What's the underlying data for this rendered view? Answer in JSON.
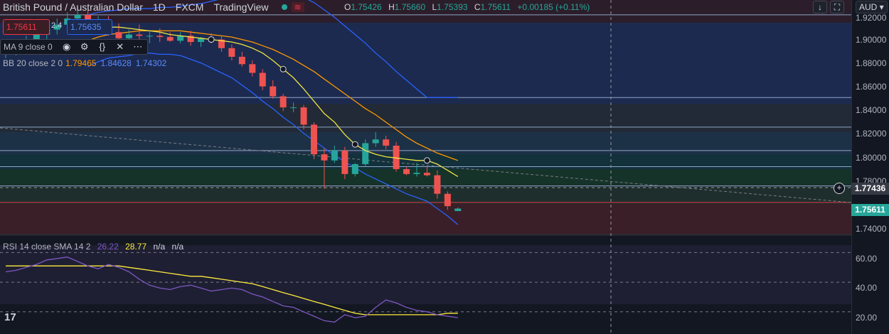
{
  "header": {
    "symbol_title": "British Pound / Australian Dollar",
    "interval": "1D",
    "exchange": "FXCM",
    "source": "TradingView",
    "market_status_icon": "market-closed-icon"
  },
  "ohlc": {
    "o_label": "O",
    "o": "1.75426",
    "h_label": "H",
    "h": "1.75660",
    "l_label": "L",
    "l": "1.75393",
    "c_label": "C",
    "c": "1.75611",
    "change": "+0.00185 (+0.11%)"
  },
  "trade": {
    "sell": "1.75611",
    "spread": "2.4",
    "buy": "1.75635"
  },
  "indicators": {
    "ma_label": "MA 9 close 0",
    "bb_label": "BB 20 close 2 0",
    "bb_basis": "1.79465",
    "bb_upper": "1.84628",
    "bb_lower": "1.74302",
    "rsi_label": "RSI 14 close SMA 14 2",
    "rsi_value": "26.22",
    "rsi_sma": "28.77",
    "rsi_na1": "n/a",
    "rsi_na2": "n/a"
  },
  "price_axis": {
    "currency": "AUD",
    "ticks": [
      "1.92000",
      "1.90000",
      "1.88000",
      "1.86000",
      "1.84000",
      "1.82000",
      "1.80000",
      "1.78000",
      "1.74000"
    ],
    "crosshair_price": "1.77436",
    "last_price": "1.75611",
    "rsi_ticks": [
      "60.00",
      "40.00",
      "20.00"
    ]
  },
  "colors": {
    "up": "#26a69a",
    "down": "#ef5350",
    "ma": "#f0e442",
    "bb_basis": "#ff9800",
    "bb_band": "#2962ff",
    "rsi": "#7e57c2",
    "rsi_sma": "#ffeb3b"
  },
  "chart_data": [
    {
      "type": "candlestick",
      "title": "British Pound / Australian Dollar · 1D · FXCM",
      "y_range": [
        1.735,
        1.925
      ],
      "candles": [
        {
          "o": 1.882,
          "h": 1.889,
          "l": 1.878,
          "c": 1.884
        },
        {
          "o": 1.884,
          "h": 1.892,
          "l": 1.88,
          "c": 1.888
        },
        {
          "o": 1.888,
          "h": 1.896,
          "l": 1.885,
          "c": 1.893
        },
        {
          "o": 1.893,
          "h": 1.9,
          "l": 1.889,
          "c": 1.897
        },
        {
          "o": 1.897,
          "h": 1.905,
          "l": 1.893,
          "c": 1.901
        },
        {
          "o": 1.901,
          "h": 1.91,
          "l": 1.897,
          "c": 1.905
        },
        {
          "o": 1.905,
          "h": 1.915,
          "l": 1.9,
          "c": 1.91
        },
        {
          "o": 1.91,
          "h": 1.918,
          "l": 1.905,
          "c": 1.913
        },
        {
          "o": 1.913,
          "h": 1.917,
          "l": 1.9,
          "c": 1.904
        },
        {
          "o": 1.904,
          "h": 1.912,
          "l": 1.898,
          "c": 1.908
        },
        {
          "o": 1.908,
          "h": 1.912,
          "l": 1.896,
          "c": 1.899
        },
        {
          "o": 1.899,
          "h": 1.906,
          "l": 1.89,
          "c": 1.894
        },
        {
          "o": 1.894,
          "h": 1.901,
          "l": 1.886,
          "c": 1.897
        },
        {
          "o": 1.897,
          "h": 1.905,
          "l": 1.89,
          "c": 1.896
        },
        {
          "o": 1.896,
          "h": 1.9,
          "l": 1.89,
          "c": 1.896
        },
        {
          "o": 1.896,
          "h": 1.902,
          "l": 1.891,
          "c": 1.895
        },
        {
          "o": 1.895,
          "h": 1.899,
          "l": 1.891,
          "c": 1.892
        },
        {
          "o": 1.892,
          "h": 1.899,
          "l": 1.89,
          "c": 1.896
        },
        {
          "o": 1.896,
          "h": 1.9,
          "l": 1.888,
          "c": 1.891
        },
        {
          "o": 1.891,
          "h": 1.895,
          "l": 1.887,
          "c": 1.894
        },
        {
          "o": 1.894,
          "h": 1.898,
          "l": 1.89,
          "c": 1.893
        },
        {
          "o": 1.893,
          "h": 1.896,
          "l": 1.883,
          "c": 1.886
        },
        {
          "o": 1.886,
          "h": 1.889,
          "l": 1.876,
          "c": 1.879
        },
        {
          "o": 1.879,
          "h": 1.883,
          "l": 1.871,
          "c": 1.873
        },
        {
          "o": 1.873,
          "h": 1.876,
          "l": 1.863,
          "c": 1.866
        },
        {
          "o": 1.866,
          "h": 1.869,
          "l": 1.852,
          "c": 1.855
        },
        {
          "o": 1.855,
          "h": 1.86,
          "l": 1.845,
          "c": 1.847
        },
        {
          "o": 1.847,
          "h": 1.849,
          "l": 1.835,
          "c": 1.838
        },
        {
          "o": 1.838,
          "h": 1.842,
          "l": 1.834,
          "c": 1.838
        },
        {
          "o": 1.838,
          "h": 1.84,
          "l": 1.82,
          "c": 1.824
        },
        {
          "o": 1.824,
          "h": 1.826,
          "l": 1.796,
          "c": 1.8
        },
        {
          "o": 1.8,
          "h": 1.805,
          "l": 1.772,
          "c": 1.795
        },
        {
          "o": 1.795,
          "h": 1.807,
          "l": 1.793,
          "c": 1.803
        },
        {
          "o": 1.803,
          "h": 1.806,
          "l": 1.78,
          "c": 1.784
        },
        {
          "o": 1.784,
          "h": 1.793,
          "l": 1.782,
          "c": 1.792
        },
        {
          "o": 1.792,
          "h": 1.812,
          "l": 1.79,
          "c": 1.809
        },
        {
          "o": 1.809,
          "h": 1.818,
          "l": 1.806,
          "c": 1.812
        },
        {
          "o": 1.812,
          "h": 1.815,
          "l": 1.804,
          "c": 1.807
        },
        {
          "o": 1.807,
          "h": 1.81,
          "l": 1.786,
          "c": 1.788
        },
        {
          "o": 1.788,
          "h": 1.79,
          "l": 1.783,
          "c": 1.784
        },
        {
          "o": 1.784,
          "h": 1.793,
          "l": 1.782,
          "c": 1.785
        },
        {
          "o": 1.785,
          "h": 1.79,
          "l": 1.782,
          "c": 1.783
        },
        {
          "o": 1.783,
          "h": 1.787,
          "l": 1.764,
          "c": 1.768
        },
        {
          "o": 1.768,
          "h": 1.77,
          "l": 1.755,
          "c": 1.758
        },
        {
          "o": 1.754,
          "h": 1.757,
          "l": 1.754,
          "c": 1.756
        }
      ],
      "ma9": [
        null,
        null,
        null,
        null,
        null,
        null,
        null,
        null,
        1.9,
        1.902,
        1.903,
        1.903,
        1.902,
        1.901,
        1.9,
        1.899,
        1.897,
        1.896,
        1.895,
        1.894,
        1.893,
        1.892,
        1.891,
        1.889,
        1.886,
        1.882,
        1.876,
        1.869,
        1.862,
        1.853,
        1.843,
        1.833,
        1.826,
        1.816,
        1.808,
        1.803,
        1.8,
        1.798,
        1.797,
        1.796,
        1.795,
        1.795,
        1.792,
        1.787,
        1.782
      ],
      "bb_basis": [
        null,
        null,
        null,
        null,
        null,
        null,
        null,
        null,
        1.892,
        1.895,
        1.897,
        1.898,
        1.899,
        1.9,
        1.9,
        1.9,
        1.9,
        1.9,
        1.899,
        1.898,
        1.897,
        1.896,
        1.895,
        1.893,
        1.891,
        1.888,
        1.885,
        1.881,
        1.877,
        1.872,
        1.867,
        1.861,
        1.855,
        1.849,
        1.843,
        1.837,
        1.832,
        1.826,
        1.82,
        1.814,
        1.809,
        1.805,
        1.801,
        1.798,
        1.795
      ],
      "bb_upper": [
        null,
        null,
        null,
        null,
        null,
        null,
        null,
        null,
        1.913,
        1.915,
        1.916,
        1.917,
        1.918,
        1.918,
        1.918,
        1.919,
        1.919,
        1.92,
        1.921,
        1.922,
        1.924,
        1.926,
        1.928,
        1.93,
        1.932,
        1.933,
        1.933,
        1.932,
        1.93,
        1.927,
        1.923,
        1.917,
        1.911,
        1.904,
        1.897,
        1.89,
        1.882,
        1.875,
        1.867,
        1.86,
        1.853,
        1.846,
        1.846,
        1.846,
        1.846
      ],
      "bb_lower": [
        null,
        null,
        null,
        null,
        null,
        null,
        null,
        null,
        1.871,
        1.875,
        1.878,
        1.879,
        1.88,
        1.882,
        1.882,
        1.881,
        1.881,
        1.88,
        1.877,
        1.874,
        1.87,
        1.866,
        1.862,
        1.856,
        1.85,
        1.843,
        1.837,
        1.83,
        1.824,
        1.817,
        1.811,
        1.805,
        1.799,
        1.794,
        1.789,
        1.784,
        1.78,
        1.776,
        1.772,
        1.768,
        1.765,
        1.762,
        1.756,
        1.75,
        1.743
      ],
      "horizontal_levels": [
        1.913,
        1.846,
        1.822,
        1.803,
        1.79,
        1.7744,
        1.761
      ],
      "crosshair_price": 1.77436,
      "last_price": 1.75611
    },
    {
      "type": "line",
      "title": "RSI 14 close SMA 14",
      "y_range": [
        15,
        75
      ],
      "levels": [
        70,
        50,
        30
      ],
      "rsi": [
        57,
        58,
        60,
        62,
        65,
        66,
        67,
        64,
        61,
        59,
        62,
        60,
        57,
        52,
        48,
        46,
        45,
        47,
        48,
        46,
        44,
        45,
        46,
        45,
        42,
        40,
        37,
        34,
        33,
        30,
        27,
        24,
        23,
        28,
        26,
        27,
        33,
        38,
        36,
        33,
        31,
        30,
        28,
        27,
        26
      ],
      "rsi_sma": [
        61,
        61,
        61,
        61,
        61,
        61,
        61,
        61,
        61,
        61,
        61,
        61,
        60,
        59,
        58,
        57,
        56,
        55,
        54,
        54,
        53,
        52,
        51,
        50,
        49,
        47,
        45,
        43,
        41,
        39,
        37,
        35,
        33,
        31,
        29,
        28,
        28,
        28,
        28,
        28,
        28,
        28,
        28,
        29,
        29
      ]
    }
  ]
}
